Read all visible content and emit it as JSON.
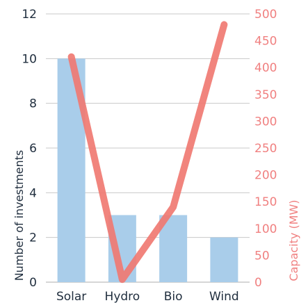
{
  "chart_data": {
    "type": "bar",
    "categories": [
      "Solar",
      "Hydro",
      "Bio",
      "Wind"
    ],
    "series": [
      {
        "name": "Number of investments",
        "type": "bar",
        "axis": "left",
        "color": "#a9cdea",
        "values": [
          10,
          3,
          3,
          2
        ]
      },
      {
        "name": "Capacity (MW)",
        "type": "line",
        "axis": "right",
        "color": "#f07a72",
        "values": [
          420,
          5,
          140,
          480
        ]
      }
    ],
    "ylabel": "Number of investments",
    "ylabel_right": "Capacity (MW)",
    "ylim": [
      0,
      12
    ],
    "ylim_right": [
      0,
      500
    ],
    "yticks": [
      0,
      2,
      4,
      6,
      8,
      10,
      12
    ],
    "yticks_right": [
      0,
      50,
      100,
      150,
      200,
      250,
      300,
      350,
      400,
      450,
      500
    ],
    "grid": true,
    "legend": "none",
    "colors": {
      "left_axis_text": "#1f2d3d",
      "right_axis_text": "#f08080",
      "grid": "#c8c8c8",
      "bar": "#a9cdea",
      "line": "#f07a72"
    }
  }
}
